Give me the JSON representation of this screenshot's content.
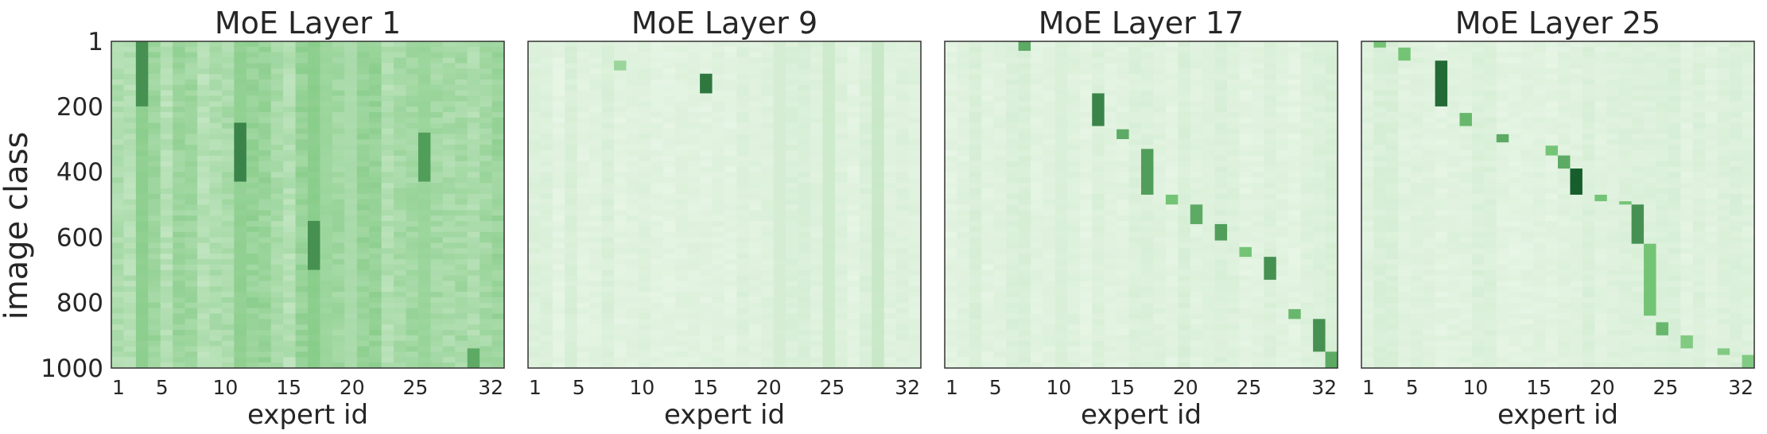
{
  "figure": {
    "ylabel": "image class",
    "colors": {
      "low": "#f7fcf5",
      "high": "#00441b",
      "frame": "#333333",
      "text": "#262626"
    }
  },
  "chart_data": [
    {
      "type": "heatmap",
      "title": "MoE Layer 1",
      "xlabel": "expert id",
      "ylabel": "image class",
      "xticks": [
        "1",
        "5",
        "10",
        "15",
        "20",
        "25",
        "32"
      ],
      "yticks": [
        "1",
        "200",
        "400",
        "600",
        "800",
        "1000"
      ],
      "xlim": [
        1,
        32
      ],
      "ylim": [
        1,
        1000
      ],
      "colormap": "Greens",
      "pattern": "dense",
      "bands": [
        {
          "expert": 3,
          "from": 1,
          "to": 1000,
          "value": 0.45
        },
        {
          "expert": 11,
          "from": 1,
          "to": 1000,
          "value": 0.4
        },
        {
          "expert": 17,
          "from": 1,
          "to": 1000,
          "value": 0.45
        },
        {
          "expert": 18,
          "from": 1,
          "to": 1000,
          "value": 0.35
        },
        {
          "expert": 20,
          "from": 1,
          "to": 1000,
          "value": 0.3
        },
        {
          "expert": 26,
          "from": 1,
          "to": 1000,
          "value": 0.35
        }
      ],
      "blocks": [
        {
          "expert": 3,
          "from": 1,
          "to": 200,
          "value": 0.7
        },
        {
          "expert": 11,
          "from": 250,
          "to": 430,
          "value": 0.75
        },
        {
          "expert": 17,
          "from": 550,
          "to": 700,
          "value": 0.7
        },
        {
          "expert": 26,
          "from": 280,
          "to": 430,
          "value": 0.65
        },
        {
          "expert": 30,
          "from": 940,
          "to": 1000,
          "value": 0.6
        }
      ]
    },
    {
      "type": "heatmap",
      "title": "MoE Layer 9",
      "xlabel": "expert id",
      "ylabel": "",
      "xticks": [
        "1",
        "5",
        "10",
        "15",
        "20",
        "25",
        "32"
      ],
      "yticks": [],
      "xlim": [
        1,
        32
      ],
      "ylim": [
        1,
        1000
      ],
      "colormap": "Greens",
      "pattern": "sparse",
      "bands": [
        {
          "expert": 21,
          "from": 1,
          "to": 1000,
          "value": 0.15
        },
        {
          "expert": 25,
          "from": 1,
          "to": 1000,
          "value": 0.18
        },
        {
          "expert": 29,
          "from": 1,
          "to": 1000,
          "value": 0.2
        }
      ],
      "blocks": [
        {
          "expert": 15,
          "from": 100,
          "to": 160,
          "value": 0.8
        },
        {
          "expert": 8,
          "from": 60,
          "to": 90,
          "value": 0.35
        }
      ]
    },
    {
      "type": "heatmap",
      "title": "MoE Layer 17",
      "xlabel": "expert id",
      "ylabel": "",
      "xticks": [
        "1",
        "5",
        "10",
        "15",
        "20",
        "25",
        "32"
      ],
      "yticks": [],
      "xlim": [
        1,
        32
      ],
      "ylim": [
        1,
        1000
      ],
      "colormap": "Greens",
      "pattern": "diagonal",
      "bands": [
        {
          "expert": 10,
          "from": 1,
          "to": 1000,
          "value": 0.12
        },
        {
          "expert": 22,
          "from": 1,
          "to": 1000,
          "value": 0.1
        }
      ],
      "blocks": [
        {
          "expert": 7,
          "from": 1,
          "to": 30,
          "value": 0.6
        },
        {
          "expert": 13,
          "from": 160,
          "to": 260,
          "value": 0.75
        },
        {
          "expert": 15,
          "from": 270,
          "to": 300,
          "value": 0.6
        },
        {
          "expert": 17,
          "from": 330,
          "to": 470,
          "value": 0.65
        },
        {
          "expert": 19,
          "from": 470,
          "to": 500,
          "value": 0.5
        },
        {
          "expert": 21,
          "from": 500,
          "to": 560,
          "value": 0.6
        },
        {
          "expert": 23,
          "from": 560,
          "to": 610,
          "value": 0.65
        },
        {
          "expert": 25,
          "from": 630,
          "to": 660,
          "value": 0.5
        },
        {
          "expert": 27,
          "from": 660,
          "to": 730,
          "value": 0.7
        },
        {
          "expert": 29,
          "from": 820,
          "to": 850,
          "value": 0.55
        },
        {
          "expert": 31,
          "from": 850,
          "to": 950,
          "value": 0.7
        },
        {
          "expert": 32,
          "from": 950,
          "to": 1000,
          "value": 0.6
        }
      ]
    },
    {
      "type": "heatmap",
      "title": "MoE Layer 25",
      "xlabel": "expert id",
      "ylabel": "",
      "xticks": [
        "1",
        "5",
        "10",
        "15",
        "20",
        "25",
        "32"
      ],
      "yticks": [],
      "xlim": [
        1,
        32
      ],
      "ylim": [
        1,
        1000
      ],
      "colormap": "Greens",
      "pattern": "diagonal",
      "bands": [],
      "blocks": [
        {
          "expert": 2,
          "from": 1,
          "to": 20,
          "value": 0.5
        },
        {
          "expert": 4,
          "from": 20,
          "to": 60,
          "value": 0.5
        },
        {
          "expert": 7,
          "from": 60,
          "to": 200,
          "value": 0.85
        },
        {
          "expert": 9,
          "from": 220,
          "to": 260,
          "value": 0.55
        },
        {
          "expert": 12,
          "from": 285,
          "to": 310,
          "value": 0.6
        },
        {
          "expert": 16,
          "from": 320,
          "to": 350,
          "value": 0.5
        },
        {
          "expert": 17,
          "from": 350,
          "to": 390,
          "value": 0.6
        },
        {
          "expert": 18,
          "from": 390,
          "to": 470,
          "value": 0.9
        },
        {
          "expert": 20,
          "from": 470,
          "to": 490,
          "value": 0.5
        },
        {
          "expert": 22,
          "from": 490,
          "to": 500,
          "value": 0.5
        },
        {
          "expert": 23,
          "from": 500,
          "to": 620,
          "value": 0.7
        },
        {
          "expert": 24,
          "from": 620,
          "to": 840,
          "value": 0.5
        },
        {
          "expert": 25,
          "from": 860,
          "to": 900,
          "value": 0.55
        },
        {
          "expert": 27,
          "from": 900,
          "to": 940,
          "value": 0.45
        },
        {
          "expert": 30,
          "from": 940,
          "to": 960,
          "value": 0.45
        },
        {
          "expert": 32,
          "from": 960,
          "to": 1000,
          "value": 0.45
        }
      ]
    }
  ]
}
